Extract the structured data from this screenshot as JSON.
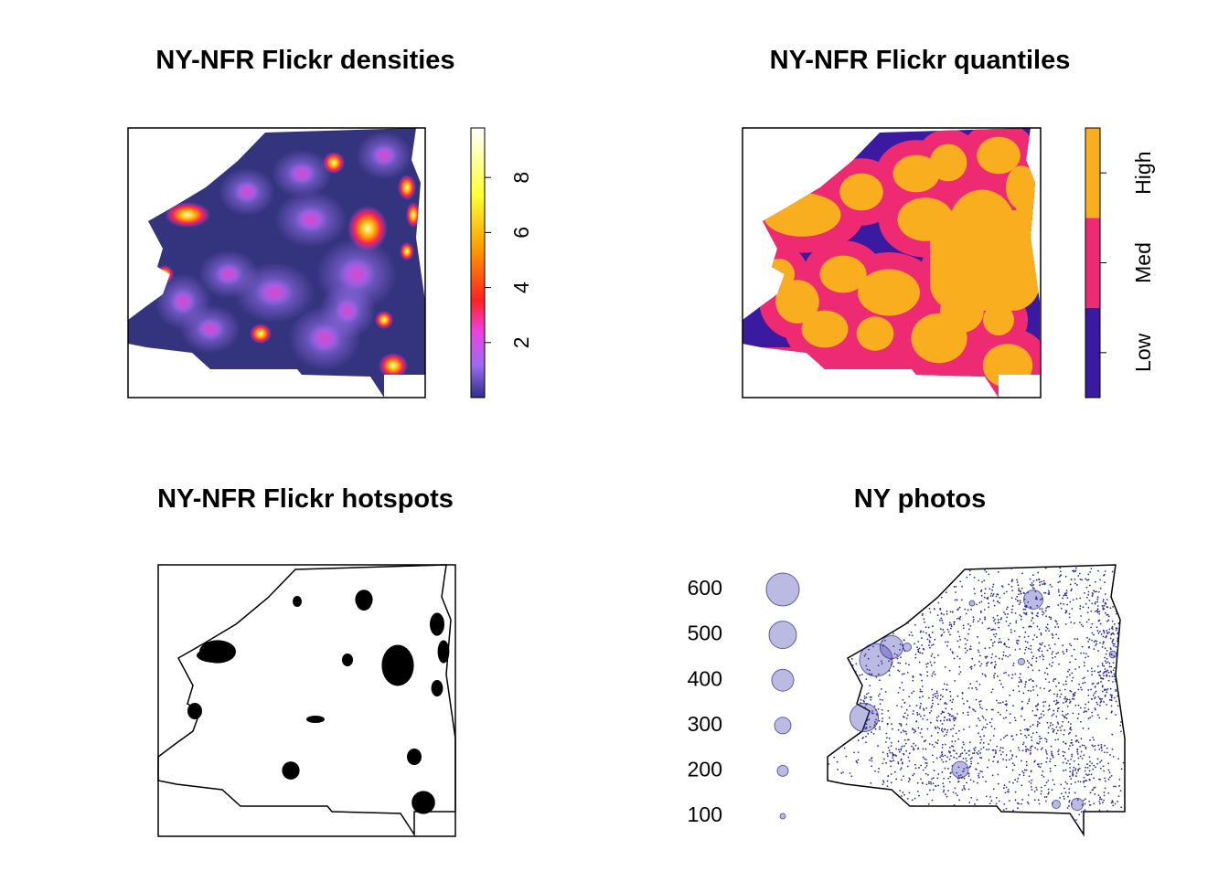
{
  "panels": [
    {
      "title": "NY-NFR Flickr densities",
      "colorbar": {
        "lim": [
          0,
          9.8
        ],
        "ticks": [
          2,
          4,
          6,
          8
        ]
      }
    },
    {
      "title": "NY-NFR Flickr quantiles",
      "classes": [
        {
          "label": "Low",
          "color": "#3a1aa0"
        },
        {
          "label": "Med",
          "color": "#ee2a72"
        },
        {
          "label": "High",
          "color": "#f8ae1f"
        }
      ]
    },
    {
      "title": "NY-NFR Flickr hotspots"
    },
    {
      "title": "NY photos",
      "size_legend": [
        100,
        200,
        300,
        400,
        500,
        600
      ]
    }
  ]
}
